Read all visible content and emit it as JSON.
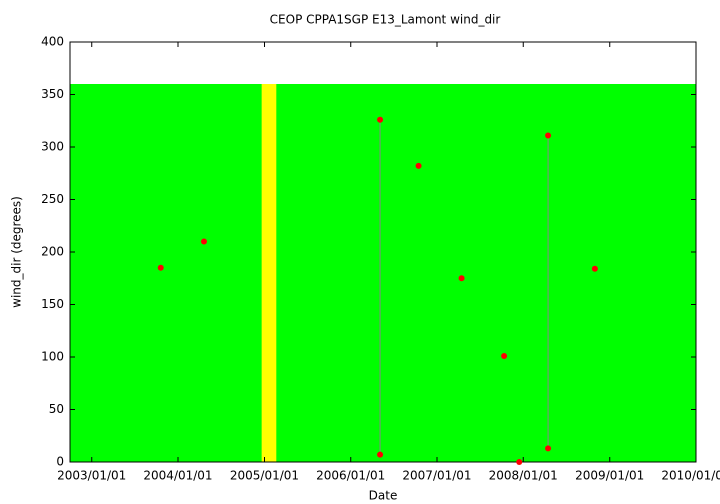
{
  "chart_data": {
    "type": "line",
    "title": "CEOP CPPA1SGP E13_Lamont  wind_dir",
    "xlabel": "Date",
    "ylabel": "wind_dir (degrees)",
    "xlim": [
      "2002/10/01",
      "2010/01/01"
    ],
    "xticks": [
      "2003/01/01",
      "2004/01/01",
      "2005/01/01",
      "2006/01/01",
      "2007/01/01",
      "2008/01/01",
      "2009/01/01",
      "2010/01/01"
    ],
    "ylim": [
      0,
      400
    ],
    "yticks": [
      0,
      50,
      100,
      150,
      200,
      250,
      300,
      350,
      400
    ],
    "fill_bands": [
      {
        "color": "#00ff00",
        "x": [
          "2002/10/01",
          "2010/01/01"
        ],
        "range": [
          0,
          360
        ]
      },
      {
        "color": "#ffff00",
        "x": [
          "2004/12/20",
          "2005/02/20"
        ],
        "range": [
          0,
          360
        ]
      }
    ],
    "series": [
      {
        "color": "#ff0000",
        "x": [
          "2003/10/20",
          null,
          "2004/04/20",
          null,
          "2006/05/05",
          "2006/05/05",
          null,
          "2006/10/15",
          null,
          "2007/04/15",
          null,
          "2007/10/12",
          null,
          "2007/12/15",
          null,
          "2008/04/15",
          "2008/04/15",
          null,
          "2008/10/30"
        ],
        "values": [
          185,
          null,
          210,
          null,
          326,
          7,
          null,
          282,
          null,
          175,
          null,
          101,
          null,
          0,
          null,
          311,
          13,
          null,
          184
        ]
      }
    ]
  }
}
